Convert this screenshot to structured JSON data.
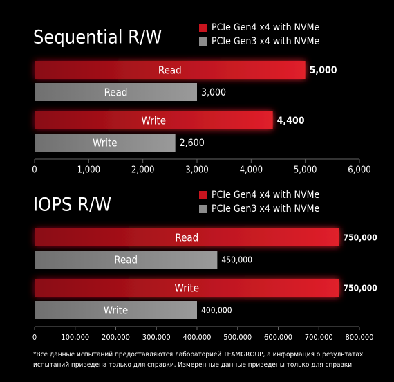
{
  "chart_data": [
    {
      "type": "bar",
      "title": "Sequential R/W",
      "categories": [
        "Read",
        "Write"
      ],
      "series": [
        {
          "name": "PCIe Gen4 x4 with NVMe",
          "color": "#c8141e",
          "values": [
            5000,
            4400
          ],
          "value_labels": [
            "5,000",
            "4,400"
          ]
        },
        {
          "name": "PCIe Gen3 x4 with NVMe",
          "color": "#8c8c8c",
          "values": [
            3000,
            2600
          ],
          "value_labels": [
            "3,000",
            "2,600"
          ]
        }
      ],
      "xlim": [
        0,
        6000
      ],
      "xticks": [
        0,
        {
          "value": 1000,
          "label": "1,000"
        },
        {
          "value": 2000,
          "label": "2,000"
        },
        {
          "value": 3000,
          "label": "3,000"
        },
        {
          "value": 4000,
          "label": "4,000"
        },
        {
          "value": 5000,
          "label": "5,000"
        },
        {
          "value": 6000,
          "label": "6,000"
        }
      ]
    },
    {
      "type": "bar",
      "title": "IOPS R/W",
      "categories": [
        "Read",
        "Write"
      ],
      "series": [
        {
          "name": "PCIe Gen4 x4 with NVMe",
          "color": "#c8141e",
          "values": [
            750000,
            750000
          ],
          "value_labels": [
            "750,000",
            "750,000"
          ]
        },
        {
          "name": "PCIe Gen3 x4 with NVMe",
          "color": "#8c8c8c",
          "values": [
            450000,
            400000
          ],
          "value_labels": [
            "450,000",
            "400,000"
          ]
        }
      ],
      "xlim": [
        0,
        800000
      ],
      "xticks": [
        0,
        {
          "value": 100000,
          "label": "100,000"
        },
        {
          "value": 200000,
          "label": "200,000"
        },
        {
          "value": 300000,
          "label": "300,000"
        },
        {
          "value": 400000,
          "label": "400,000"
        },
        {
          "value": 500000,
          "label": "500,000"
        },
        {
          "value": 600000,
          "label": "600,000"
        },
        {
          "value": 700000,
          "label": "700,000"
        },
        {
          "value": 800000,
          "label": "800,000"
        }
      ]
    }
  ],
  "footnote": [
    "*Все данные испытаний предоставляются лабораторией TEAMGROUP, а информация о результатах",
    "испытаний приведена только для справки. Измеренные данные приведены только для справки."
  ]
}
